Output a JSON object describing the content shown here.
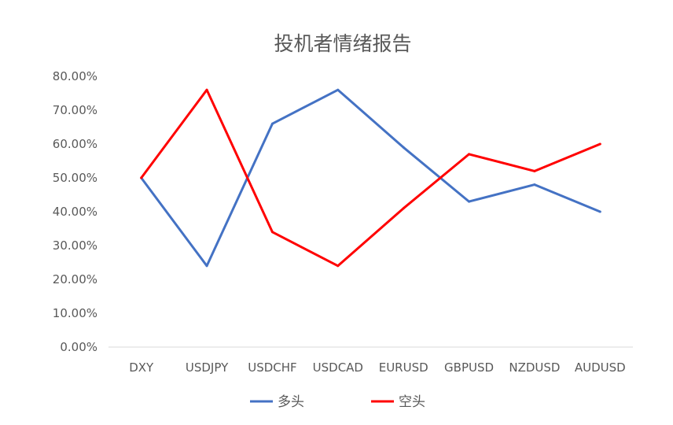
{
  "chart_data": {
    "type": "line",
    "title": "投机者情绪报告",
    "xlabel": "",
    "ylabel": "",
    "categories": [
      "DXY",
      "USDJPY",
      "USDCHF",
      "USDCAD",
      "EURUSD",
      "GBPUSD",
      "NZDUSD",
      "AUDUSD"
    ],
    "y_ticks": [
      "0.00%",
      "10.00%",
      "20.00%",
      "30.00%",
      "40.00%",
      "50.00%",
      "60.00%",
      "70.00%",
      "80.00%"
    ],
    "ylim": [
      0,
      80
    ],
    "grid": false,
    "legend_position": "bottom",
    "series": [
      {
        "name": "多头",
        "color": "#4472C4",
        "values": [
          50,
          24,
          66,
          76,
          59,
          43,
          48,
          40
        ]
      },
      {
        "name": "空头",
        "color": "#FF0000",
        "values": [
          50,
          76,
          34,
          24,
          41,
          57,
          52,
          60
        ]
      }
    ]
  }
}
